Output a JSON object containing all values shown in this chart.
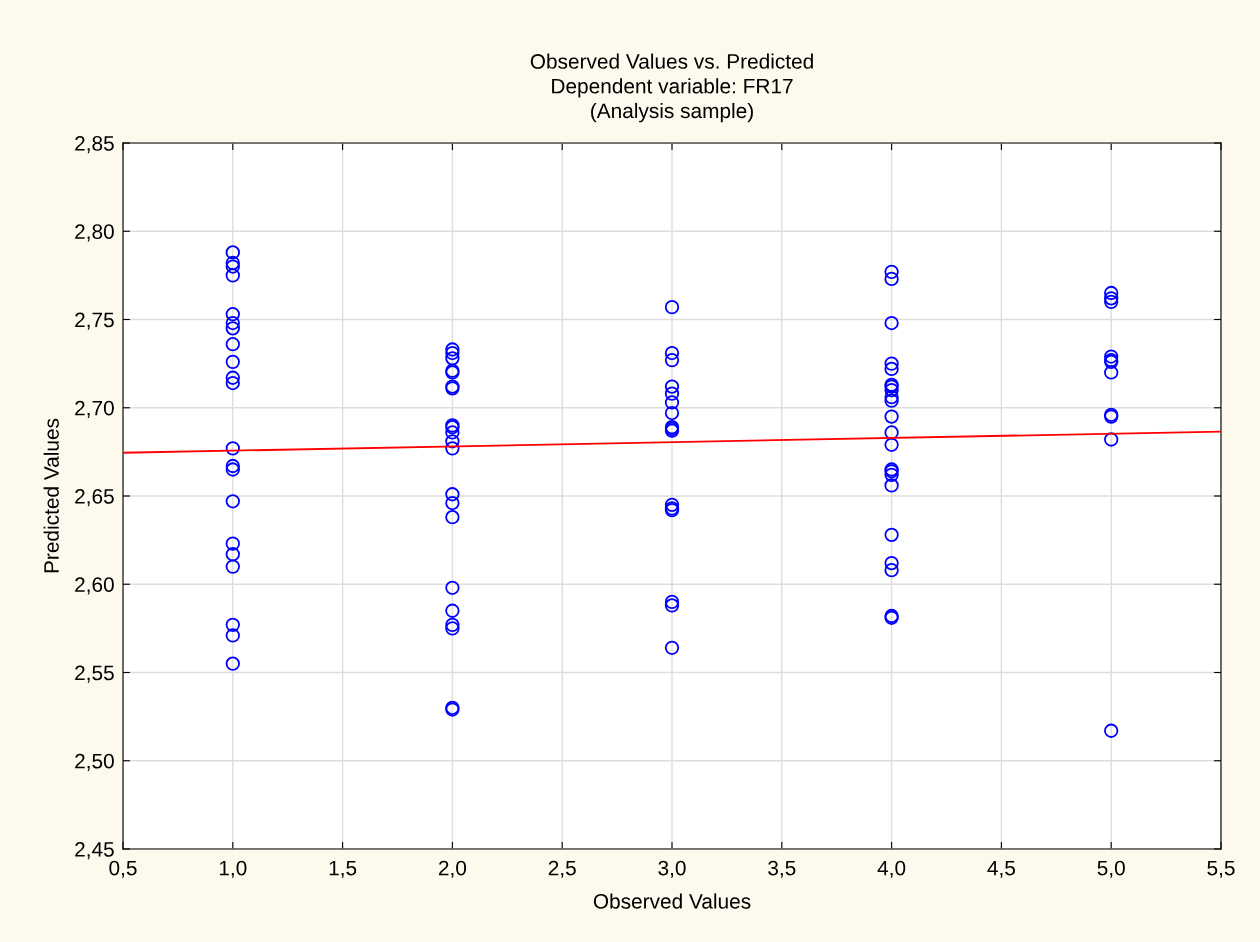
{
  "chart_data": {
    "type": "scatter",
    "title": "Observed Values vs. Predicted\nDependent variable: FR17\n(Analysis sample)",
    "xlabel": "Observed Values",
    "ylabel": "Predicted Values",
    "series": [
      {
        "color": "#0000ff",
        "marker": "circle",
        "x": [
          1,
          1,
          1,
          1,
          1,
          1,
          1,
          1,
          1,
          1,
          1,
          1,
          1,
          1,
          1,
          1,
          1,
          1,
          1,
          1,
          1,
          2,
          2,
          2,
          2,
          2,
          2,
          2,
          2,
          2,
          2,
          2,
          2,
          2,
          2,
          2,
          2,
          2,
          2,
          2,
          2,
          2,
          3,
          3,
          3,
          3,
          3,
          3,
          3,
          3,
          3,
          3,
          3,
          3,
          3,
          3,
          3,
          3,
          4,
          4,
          4,
          4,
          4,
          4,
          4,
          4,
          4,
          4,
          4,
          4,
          4,
          4,
          4,
          4,
          4,
          4,
          4,
          4,
          4,
          4,
          5,
          5,
          5,
          5,
          5,
          5,
          5,
          5,
          5,
          5,
          5
        ],
        "values": [
          2.788,
          2.782,
          2.78,
          2.775,
          2.753,
          2.748,
          2.745,
          2.736,
          2.726,
          2.717,
          2.714,
          2.677,
          2.667,
          2.665,
          2.647,
          2.623,
          2.617,
          2.61,
          2.577,
          2.571,
          2.555,
          2.733,
          2.731,
          2.728,
          2.721,
          2.72,
          2.712,
          2.711,
          2.69,
          2.689,
          2.686,
          2.681,
          2.677,
          2.651,
          2.646,
          2.638,
          2.598,
          2.585,
          2.577,
          2.575,
          2.53,
          2.529,
          2.757,
          2.731,
          2.727,
          2.712,
          2.708,
          2.703,
          2.697,
          2.689,
          2.688,
          2.687,
          2.645,
          2.643,
          2.642,
          2.59,
          2.588,
          2.564,
          2.777,
          2.773,
          2.748,
          2.725,
          2.722,
          2.713,
          2.712,
          2.71,
          2.706,
          2.704,
          2.695,
          2.686,
          2.679,
          2.665,
          2.664,
          2.662,
          2.656,
          2.628,
          2.612,
          2.608,
          2.582,
          2.581,
          2.765,
          2.762,
          2.76,
          2.729,
          2.727,
          2.726,
          2.72,
          2.696,
          2.695,
          2.682,
          2.517
        ]
      },
      {
        "type": "line",
        "color": "#ff0000",
        "x": [
          0.5,
          5.5
        ],
        "values": [
          2.6745,
          2.6865
        ]
      }
    ],
    "xlim": [
      0.5,
      5.5
    ],
    "ylim": [
      2.45,
      2.85
    ],
    "xticks": [
      {
        "value": 0.5,
        "label": "0,5"
      },
      {
        "value": 1.0,
        "label": "1,0"
      },
      {
        "value": 1.5,
        "label": "1,5"
      },
      {
        "value": 2.0,
        "label": "2,0"
      },
      {
        "value": 2.5,
        "label": "2,5"
      },
      {
        "value": 3.0,
        "label": "3,0"
      },
      {
        "value": 3.5,
        "label": "3,5"
      },
      {
        "value": 4.0,
        "label": "4,0"
      },
      {
        "value": 4.5,
        "label": "4,5"
      },
      {
        "value": 5.0,
        "label": "5,0"
      },
      {
        "value": 5.5,
        "label": "5,5"
      }
    ],
    "yticks": [
      {
        "value": 2.45,
        "label": "2,45"
      },
      {
        "value": 2.5,
        "label": "2,50"
      },
      {
        "value": 2.55,
        "label": "2,55"
      },
      {
        "value": 2.6,
        "label": "2,60"
      },
      {
        "value": 2.65,
        "label": "2,65"
      },
      {
        "value": 2.7,
        "label": "2,70"
      },
      {
        "value": 2.75,
        "label": "2,75"
      },
      {
        "value": 2.8,
        "label": "2,80"
      },
      {
        "value": 2.85,
        "label": "2,85"
      }
    ],
    "grid": true
  }
}
